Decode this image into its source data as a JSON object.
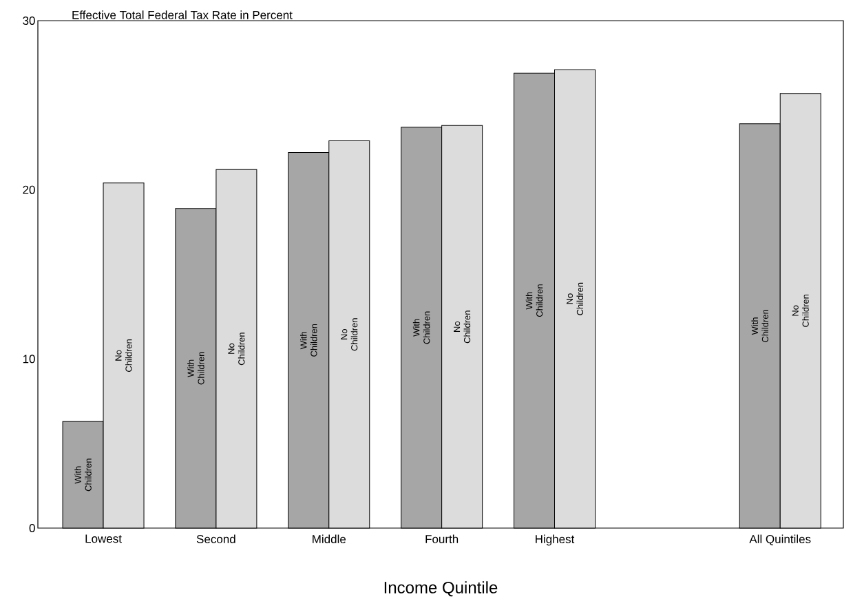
{
  "chart_data": {
    "type": "bar",
    "ylabel": "Effective Total Federal Tax Rate in Percent",
    "xlabel": "Income Quintile",
    "categories": [
      "Lowest",
      "Second",
      "Middle",
      "Fourth",
      "Highest",
      null,
      "All Quintiles"
    ],
    "series": [
      {
        "name": "With Children",
        "color": "#a6a6a6",
        "values": [
          6.3,
          18.9,
          22.2,
          23.7,
          26.9,
          null,
          23.9
        ]
      },
      {
        "name": "No Children",
        "color": "#dcdcdc",
        "values": [
          20.4,
          21.2,
          22.9,
          23.8,
          27.1,
          null,
          25.7
        ]
      }
    ],
    "ylim": [
      0,
      30
    ],
    "yticks": [
      0,
      10,
      20,
      30
    ]
  }
}
